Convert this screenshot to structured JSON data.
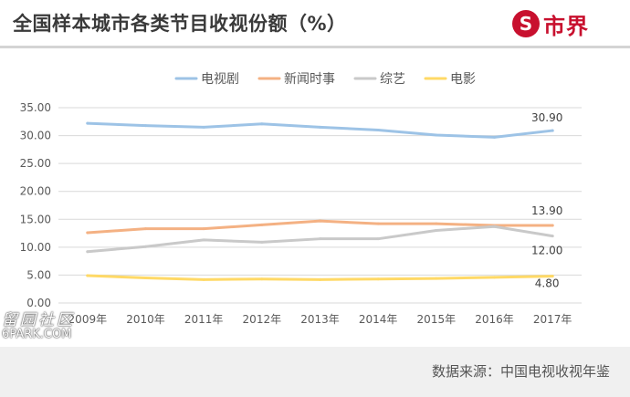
{
  "header": {
    "title": "全国样本城市各类节目收视份额（%）",
    "logo_symbol": "S",
    "logo_text": "市界"
  },
  "footer": {
    "source": "数据来源：中国电视收视年鉴"
  },
  "watermark": {
    "line1": "留园社区",
    "line2": "6PARK.COM"
  },
  "chart_data": {
    "type": "line",
    "x": [
      "2009年",
      "2010年",
      "2011年",
      "2012年",
      "2013年",
      "2014年",
      "2015年",
      "2016年",
      "2017年"
    ],
    "ylim": [
      0,
      35
    ],
    "yticks": [
      "0.00",
      "5.00",
      "10.00",
      "15.00",
      "20.00",
      "25.00",
      "30.00",
      "35.00"
    ],
    "grid": true,
    "legend_position": "top-center",
    "series": [
      {
        "name": "电视剧",
        "color": "#9dc3e6",
        "values": [
          32.2,
          31.8,
          31.5,
          32.1,
          31.5,
          31.0,
          30.1,
          29.7,
          30.9
        ],
        "end_label": "30.90"
      },
      {
        "name": "新闻时事",
        "color": "#f4b183",
        "values": [
          12.6,
          13.3,
          13.3,
          14.0,
          14.7,
          14.2,
          14.2,
          13.9,
          13.9
        ],
        "end_label": "13.90"
      },
      {
        "name": "综艺",
        "color": "#c9c9c9",
        "values": [
          9.2,
          10.1,
          11.3,
          10.9,
          11.5,
          11.5,
          13.0,
          13.7,
          12.0
        ],
        "end_label": "12.00"
      },
      {
        "name": "电影",
        "color": "#ffd966",
        "values": [
          4.9,
          4.5,
          4.2,
          4.3,
          4.2,
          4.3,
          4.4,
          4.6,
          4.8
        ],
        "end_label": "4.80"
      }
    ]
  }
}
